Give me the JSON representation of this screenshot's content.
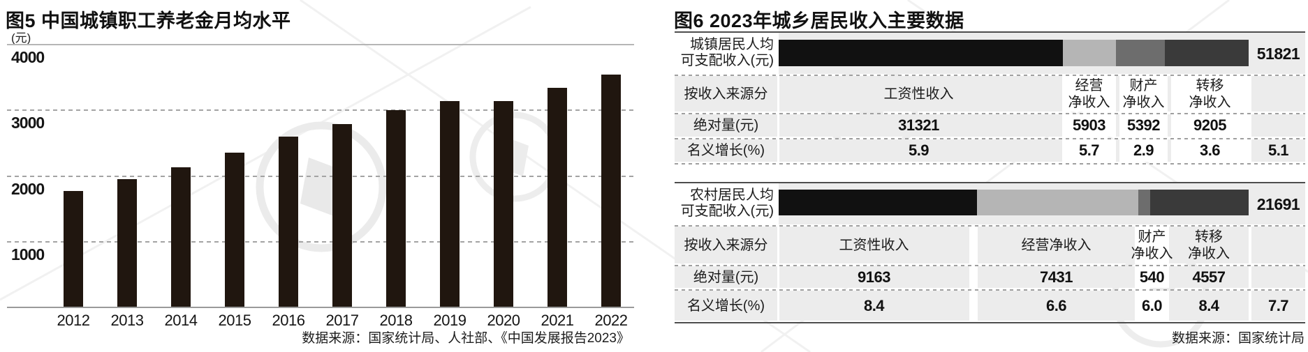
{
  "chart_data": [
    {
      "type": "bar",
      "title": "图5 中国城镇职工养老金月均水平",
      "unit_label": "(元)",
      "source": "数据来源：国家统计局、人社部、《中国发展报告2023》",
      "categories": [
        "2012",
        "2013",
        "2014",
        "2015",
        "2016",
        "2017",
        "2018",
        "2019",
        "2020",
        "2021",
        "2022"
      ],
      "values": [
        1760,
        1940,
        2125,
        2350,
        2585,
        2785,
        2995,
        3130,
        3130,
        3330,
        3530
      ],
      "xlabel": "",
      "ylabel": "元",
      "ylim": [
        0,
        4000
      ],
      "yticks": [
        4000,
        3000,
        2000,
        1000
      ],
      "grid": "horizontal-dashed",
      "legend_position": "none",
      "bar_color": "#20160f"
    },
    {
      "type": "table",
      "title": "图6 2023年城乡居民收入主要数据",
      "source": "数据来源：国家统计局",
      "segment_colors": [
        "#111111",
        "#b5b5b5",
        "#6d6d6d",
        "#3a3a3a"
      ],
      "row_bg_color": "#ececec",
      "groups": [
        {
          "label_lines": [
            "城镇居民人均",
            "可支配收入(元)"
          ],
          "total": 51821,
          "total_display": "51821",
          "header_row_label": "按收入来源分",
          "abs_row_label": "绝对量(元)",
          "growth_row_label": "名义增长(%)",
          "overall_growth": "5.1",
          "columns": [
            {
              "name_lines": [
                "工资性收入"
              ],
              "value": 31321,
              "amount": "31321",
              "growth": "5.9"
            },
            {
              "name_lines": [
                "经营",
                "净收入"
              ],
              "value": 5903,
              "amount": "5903",
              "growth": "5.7"
            },
            {
              "name_lines": [
                "财产",
                "净收入"
              ],
              "value": 5392,
              "amount": "5392",
              "growth": "2.9"
            },
            {
              "name_lines": [
                "转移",
                "净收入"
              ],
              "value": 9205,
              "amount": "9205",
              "growth": "3.6"
            }
          ]
        },
        {
          "label_lines": [
            "农村居民人均",
            "可支配收入(元)"
          ],
          "total": 21691,
          "total_display": "21691",
          "header_row_label": "按收入来源分",
          "abs_row_label": "绝对量(元)",
          "growth_row_label": "名义增长(%)",
          "overall_growth": "7.7",
          "columns": [
            {
              "name_lines": [
                "工资性收入"
              ],
              "value": 9163,
              "amount": "9163",
              "growth": "8.4"
            },
            {
              "name_lines": [
                "经营净收入"
              ],
              "value": 7431,
              "amount": "7431",
              "growth": "6.6"
            },
            {
              "name_lines": [
                "财产",
                "净收入"
              ],
              "value": 540,
              "amount": "540",
              "growth": "6.0"
            },
            {
              "name_lines": [
                "转移",
                "净收入"
              ],
              "value": 4557,
              "amount": "4557",
              "growth": "8.4"
            }
          ]
        }
      ]
    }
  ]
}
